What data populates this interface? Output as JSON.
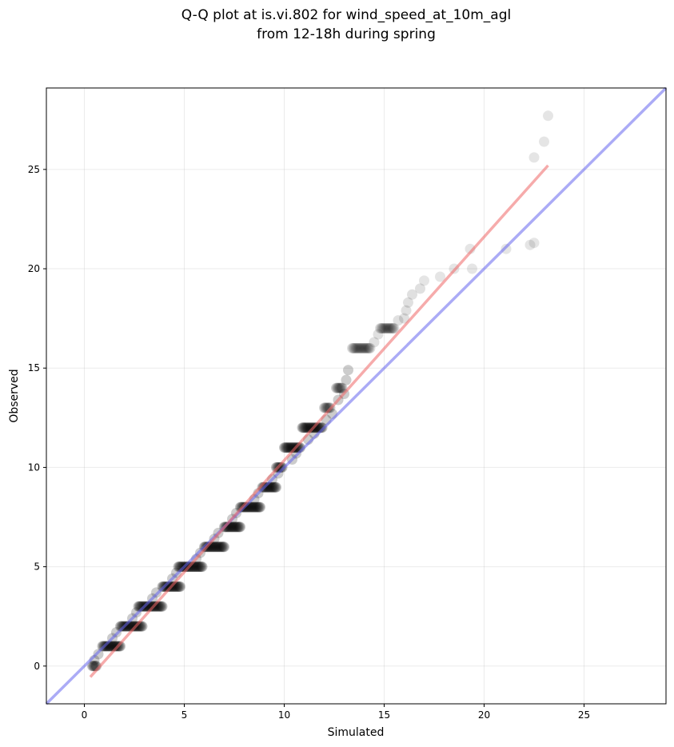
{
  "chart_data": {
    "type": "scatter",
    "title_line1": "Q-Q plot at is.vi.802 for wind_speed_at_10m_agl",
    "title_line2": "from 12-18h during spring",
    "xlabel": "Simulated",
    "ylabel": "Observed",
    "xlim": [
      -1.9,
      29.1
    ],
    "ylim": [
      -1.9,
      29.1
    ],
    "xticks": [
      0,
      5,
      10,
      15,
      20,
      25
    ],
    "yticks": [
      0,
      5,
      10,
      15,
      20,
      25
    ],
    "grid": true,
    "colors": {
      "points": "#000000",
      "identity": "#6666ee",
      "fit": "#ee6666"
    },
    "identity_line": {
      "x": [
        -1.9,
        29.1
      ],
      "y": [
        -1.9,
        29.1
      ]
    },
    "fit_line": {
      "x": [
        0.3,
        23.2
      ],
      "y": [
        -0.55,
        25.2
      ]
    },
    "steps": [
      {
        "y": 0,
        "x": [
          0.4,
          0.6
        ]
      },
      {
        "y": 1,
        "x": [
          0.9,
          1.8
        ]
      },
      {
        "y": 2,
        "x": [
          1.8,
          2.9
        ]
      },
      {
        "y": 3,
        "x": [
          2.7,
          3.9
        ]
      },
      {
        "y": 4,
        "x": [
          3.9,
          4.8
        ]
      },
      {
        "y": 5,
        "x": [
          4.7,
          5.9
        ]
      },
      {
        "y": 6,
        "x": [
          6.0,
          7.0
        ]
      },
      {
        "y": 7,
        "x": [
          7.0,
          7.8
        ]
      },
      {
        "y": 8,
        "x": [
          7.8,
          8.8
        ]
      },
      {
        "y": 9,
        "x": [
          8.9,
          9.6
        ]
      },
      {
        "y": 10,
        "x": [
          9.6,
          9.9
        ]
      },
      {
        "y": 11,
        "x": [
          10.0,
          10.8
        ]
      },
      {
        "y": 12,
        "x": [
          10.9,
          11.9
        ]
      },
      {
        "y": 13,
        "x": [
          12.0,
          12.3
        ]
      },
      {
        "y": 14,
        "x": [
          12.6,
          12.9
        ]
      },
      {
        "y": 16,
        "x": [
          13.4,
          14.3
        ]
      },
      {
        "y": 17,
        "x": [
          14.8,
          15.5
        ]
      }
    ],
    "extra_points": {
      "x": [
        0.5,
        0.7,
        1.4,
        1.6,
        2.4,
        2.6,
        3.4,
        3.6,
        4.4,
        4.6,
        5.6,
        5.8,
        6.5,
        6.7,
        7.4,
        7.6,
        8.5,
        8.7,
        9.4,
        9.7,
        10.4,
        10.6,
        11.2,
        11.5,
        12.1,
        12.4,
        12.7,
        13.0,
        13.1,
        13.2,
        14.5,
        14.7,
        15.7,
        16.0,
        16.1,
        16.2,
        16.4,
        16.8,
        17.0,
        17.8,
        18.5,
        19.3,
        19.4,
        21.1,
        22.3,
        22.5,
        22.5,
        23.0,
        23.2
      ],
      "y": [
        0.3,
        0.6,
        1.4,
        1.7,
        2.4,
        2.7,
        3.4,
        3.7,
        4.4,
        4.7,
        5.4,
        5.7,
        6.4,
        6.7,
        7.4,
        7.7,
        8.4,
        8.7,
        9.4,
        9.7,
        10.4,
        10.7,
        11.4,
        11.7,
        12.4,
        12.7,
        13.4,
        13.7,
        14.4,
        14.9,
        16.3,
        16.7,
        17.4,
        17.5,
        17.9,
        18.3,
        18.7,
        19.0,
        19.4,
        19.6,
        20.0,
        21.0,
        20.0,
        21.0,
        21.2,
        21.3,
        25.6,
        26.4,
        27.7
      ]
    }
  }
}
